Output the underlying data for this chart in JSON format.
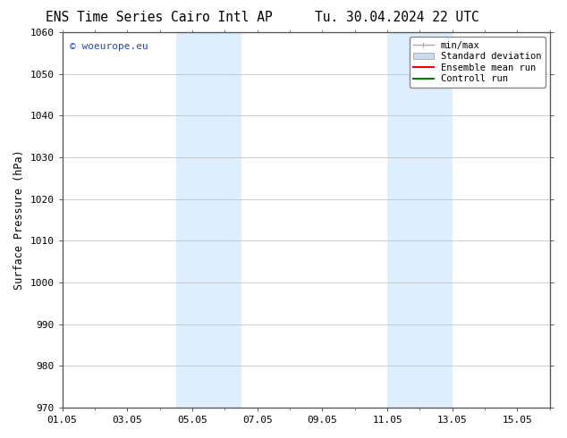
{
  "title_left": "ENS Time Series Cairo Intl AP",
  "title_right": "Tu. 30.04.2024 22 UTC",
  "ylabel": "Surface Pressure (hPa)",
  "ylim": [
    970,
    1060
  ],
  "yticks": [
    970,
    980,
    990,
    1000,
    1010,
    1020,
    1030,
    1040,
    1050,
    1060
  ],
  "xlim": [
    0,
    15
  ],
  "xtick_labels": [
    "01.05",
    "03.05",
    "05.05",
    "07.05",
    "09.05",
    "11.05",
    "13.05",
    "15.05"
  ],
  "xtick_positions": [
    0,
    2,
    4,
    6,
    8,
    10,
    12,
    14
  ],
  "shaded_bands": [
    {
      "x_start": 3.5,
      "x_end": 5.5
    },
    {
      "x_start": 10.0,
      "x_end": 12.0
    }
  ],
  "shaded_color": "#ddeeff",
  "watermark_text": "© woeurope.eu",
  "watermark_color": "#2244cc",
  "legend_items": [
    {
      "label": "min/max",
      "color": "#aaaaaa",
      "lw": 1.0,
      "type": "errbar"
    },
    {
      "label": "Standard deviation",
      "color": "#ccdaee",
      "lw": 6,
      "type": "patch"
    },
    {
      "label": "Ensemble mean run",
      "color": "red",
      "lw": 1.5,
      "type": "line"
    },
    {
      "label": "Controll run",
      "color": "green",
      "lw": 1.5,
      "type": "line"
    }
  ],
  "bg_color": "#ffffff",
  "grid_color": "#bbbbbb",
  "spine_color": "#555555",
  "title_fontsize": 10.5,
  "axis_fontsize": 8.5,
  "tick_fontsize": 8,
  "legend_fontsize": 7.5
}
